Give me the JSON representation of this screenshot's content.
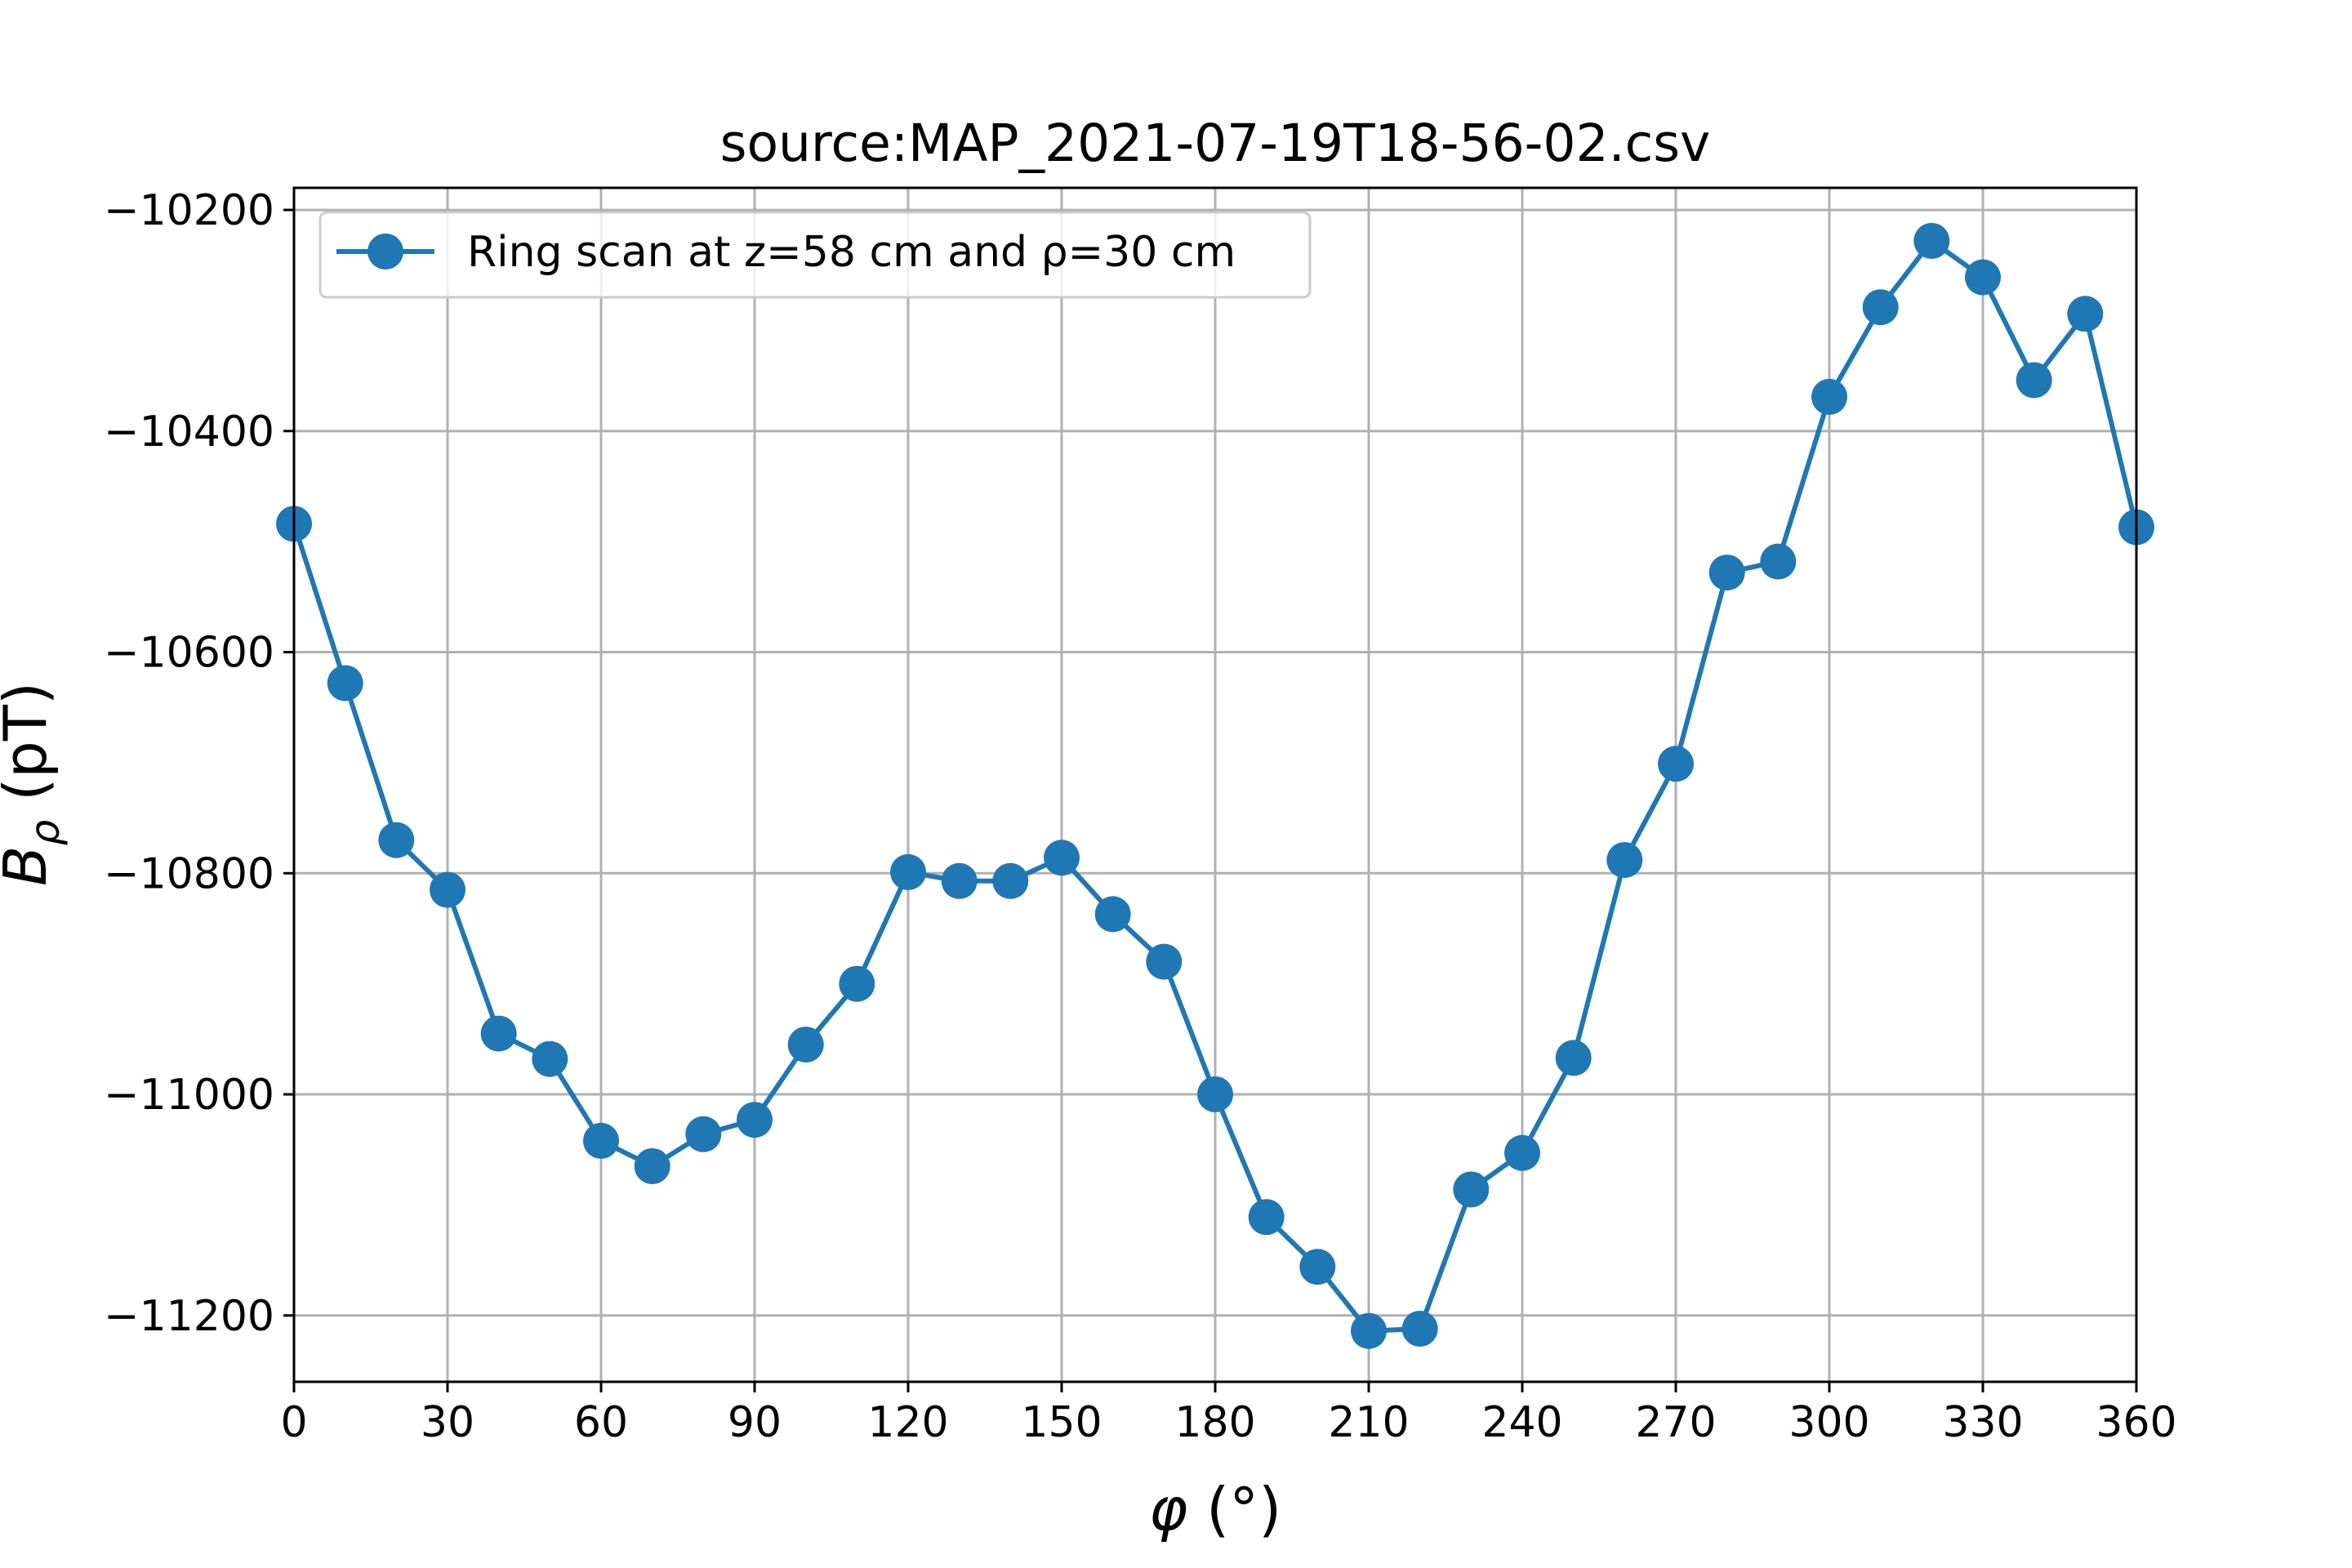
{
  "chart_data": {
    "type": "line",
    "title": "source:MAP_2021-07-19T18-56-02.csv",
    "xlabel_symbol": "φ",
    "xlabel_unit": " (°)",
    "ylabel_main": "B",
    "ylabel_sub": "ρ",
    "ylabel_unit": " (pT)",
    "xlim": [
      0,
      360
    ],
    "ylim": [
      -11260,
      -10180
    ],
    "xticks": [
      0,
      30,
      60,
      90,
      120,
      150,
      180,
      210,
      240,
      270,
      300,
      330,
      360
    ],
    "yticks": [
      -10200,
      -10400,
      -10600,
      -10800,
      -11000,
      -11200
    ],
    "ytick_labels": [
      "−10200",
      "−10400",
      "−10600",
      "−10800",
      "−11000",
      "−11200"
    ],
    "grid": true,
    "legend_position": "upper-left",
    "color": "#1f77b4",
    "series": [
      {
        "name": "Ring scan at z=58 cm and ρ=30 cm",
        "x": [
          0,
          10,
          20,
          30,
          40,
          50,
          60,
          70,
          80,
          90,
          100,
          110,
          120,
          130,
          140,
          150,
          160,
          170,
          180,
          190,
          200,
          210,
          220,
          230,
          240,
          250,
          260,
          270,
          280,
          290,
          300,
          310,
          320,
          330,
          340,
          350,
          360
        ],
        "y": [
          -10484,
          -10628,
          -10770,
          -10815,
          -10945,
          -10968,
          -11042,
          -11065,
          -11036,
          -11023,
          -10955,
          -10900,
          -10799,
          -10807,
          -10807,
          -10786,
          -10837,
          -10880,
          -11000,
          -11111,
          -11156,
          -11214,
          -11212,
          -11086,
          -11053,
          -10967,
          -10788,
          -10701,
          -10528,
          -10518,
          -10369,
          -10288,
          -10228,
          -10261,
          -10354,
          -10294,
          -10487
        ]
      }
    ]
  }
}
